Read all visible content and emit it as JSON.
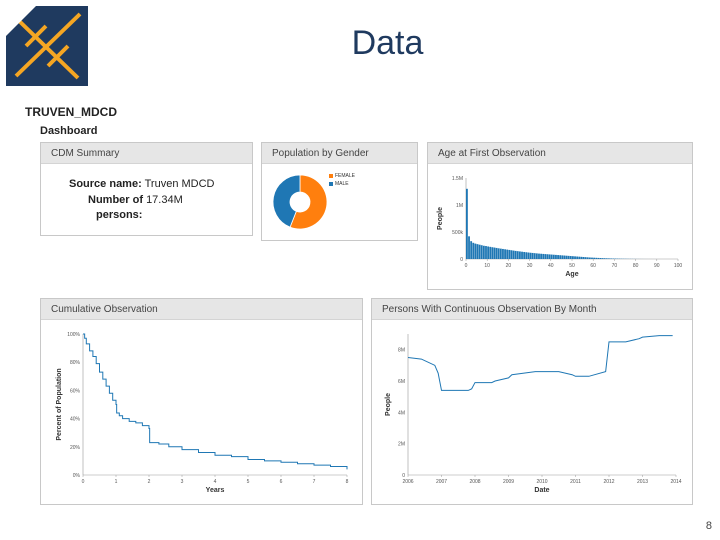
{
  "slide": {
    "title": "Data",
    "page_number": "8"
  },
  "app": {
    "name": "TRUVEN_MDCD",
    "page": "Dashboard"
  },
  "colors": {
    "accent": "#1f77b4",
    "female": "#ff7f0e",
    "male": "#1f77b4",
    "logo_navy": "#1f3a5f",
    "logo_orange": "#f5a623"
  },
  "cdm_summary": {
    "title": "CDM Summary",
    "source_label": "Source name:",
    "source_value": "Truven MDCD",
    "persons_label_1": "Number of",
    "persons_label_2": "persons:",
    "persons_value": "17.34M"
  },
  "gender": {
    "title": "Population by Gender",
    "chart_data": {
      "type": "pie",
      "categories": [
        "FEMALE",
        "MALE"
      ],
      "values": [
        56,
        44
      ],
      "donut": true
    }
  },
  "age": {
    "title": "Age at First Observation",
    "chart_data": {
      "type": "bar",
      "xlabel": "Age",
      "ylabel": "People",
      "x_ticks": [
        "0",
        "10",
        "20",
        "30",
        "40",
        "50",
        "60",
        "70",
        "80",
        "90",
        "100"
      ],
      "y_ticks": [
        "0",
        "500k",
        "1M",
        "1.5M"
      ],
      "ylim": [
        0,
        1500000
      ],
      "xlim": [
        0,
        100
      ],
      "values": [
        1300000,
        420000,
        330000,
        300000,
        285000,
        275000,
        265000,
        255000,
        245000,
        240000,
        232000,
        225000,
        218000,
        212000,
        205000,
        198000,
        192000,
        186000,
        180000,
        174000,
        168000,
        162000,
        156000,
        150000,
        145000,
        140000,
        135000,
        130000,
        125000,
        120000,
        116000,
        112000,
        108000,
        104000,
        100000,
        97000,
        94000,
        91000,
        88000,
        85000,
        82000,
        79000,
        76000,
        73000,
        70000,
        67000,
        64000,
        61000,
        58000,
        55000,
        52000,
        49000,
        46000,
        43000,
        40000,
        37000,
        34000,
        31000,
        28000,
        26000,
        24000,
        22000,
        20000,
        18000,
        16000,
        14500,
        13000,
        11500,
        10000,
        9000,
        8000,
        7000,
        6000,
        5200,
        4500,
        3900,
        3300,
        2800,
        2300,
        1900,
        1500,
        1200,
        900,
        700,
        500,
        350,
        250,
        150,
        100,
        60
      ]
    }
  },
  "cumulative": {
    "title": "Cumulative Observation",
    "chart_data": {
      "type": "line",
      "xlabel": "Years",
      "ylabel": "Percent of Population",
      "x_ticks": [
        "0",
        "1",
        "2",
        "3",
        "4",
        "5",
        "6",
        "7",
        "8"
      ],
      "y_ticks": [
        "0%",
        "20%",
        "40%",
        "60%",
        "80%",
        "100%"
      ],
      "xlim": [
        0,
        8
      ],
      "ylim": [
        0,
        100
      ],
      "x": [
        0,
        0.05,
        0.1,
        0.2,
        0.3,
        0.4,
        0.5,
        0.6,
        0.7,
        0.8,
        0.9,
        1.0,
        1.02,
        1.1,
        1.2,
        1.4,
        1.6,
        1.8,
        2.0,
        2.02,
        2.3,
        2.6,
        3.0,
        3.5,
        4.0,
        4.5,
        5.0,
        5.5,
        6.0,
        6.5,
        7.0,
        7.5,
        8.0
      ],
      "y": [
        100,
        97,
        93,
        88,
        84,
        79,
        73,
        68,
        63,
        58,
        53,
        50,
        44,
        42,
        40,
        38,
        37,
        35,
        33,
        23,
        22,
        20,
        18,
        16,
        14,
        13,
        11,
        10,
        9,
        8,
        7,
        6,
        4
      ]
    }
  },
  "continuous": {
    "title": "Persons With Continuous Observation By Month",
    "chart_data": {
      "type": "line",
      "xlabel": "Date",
      "ylabel": "People",
      "x_ticks": [
        "2006",
        "2007",
        "2008",
        "2009",
        "2010",
        "2011",
        "2012",
        "2013",
        "2014"
      ],
      "y_ticks": [
        "0",
        "2M",
        "4M",
        "6M",
        "8M"
      ],
      "xlim": [
        2006,
        2014
      ],
      "ylim": [
        0,
        9000000
      ],
      "x": [
        2006.0,
        2006.4,
        2006.8,
        2006.9,
        2007.0,
        2007.2,
        2007.4,
        2007.8,
        2007.9,
        2008.0,
        2008.5,
        2008.6,
        2009.0,
        2009.1,
        2009.8,
        2010.0,
        2010.5,
        2010.9,
        2011.0,
        2011.4,
        2011.9,
        2012.0,
        2012.5,
        2012.9,
        2013.0,
        2013.5,
        2013.9
      ],
      "y": [
        7500000,
        7400000,
        7000000,
        6500000,
        5400000,
        5400000,
        5400000,
        5400000,
        5500000,
        5900000,
        5900000,
        6000000,
        6200000,
        6400000,
        6600000,
        6600000,
        6600000,
        6400000,
        6300000,
        6300000,
        6600000,
        8500000,
        8500000,
        8700000,
        8800000,
        8900000,
        8900000
      ]
    }
  }
}
